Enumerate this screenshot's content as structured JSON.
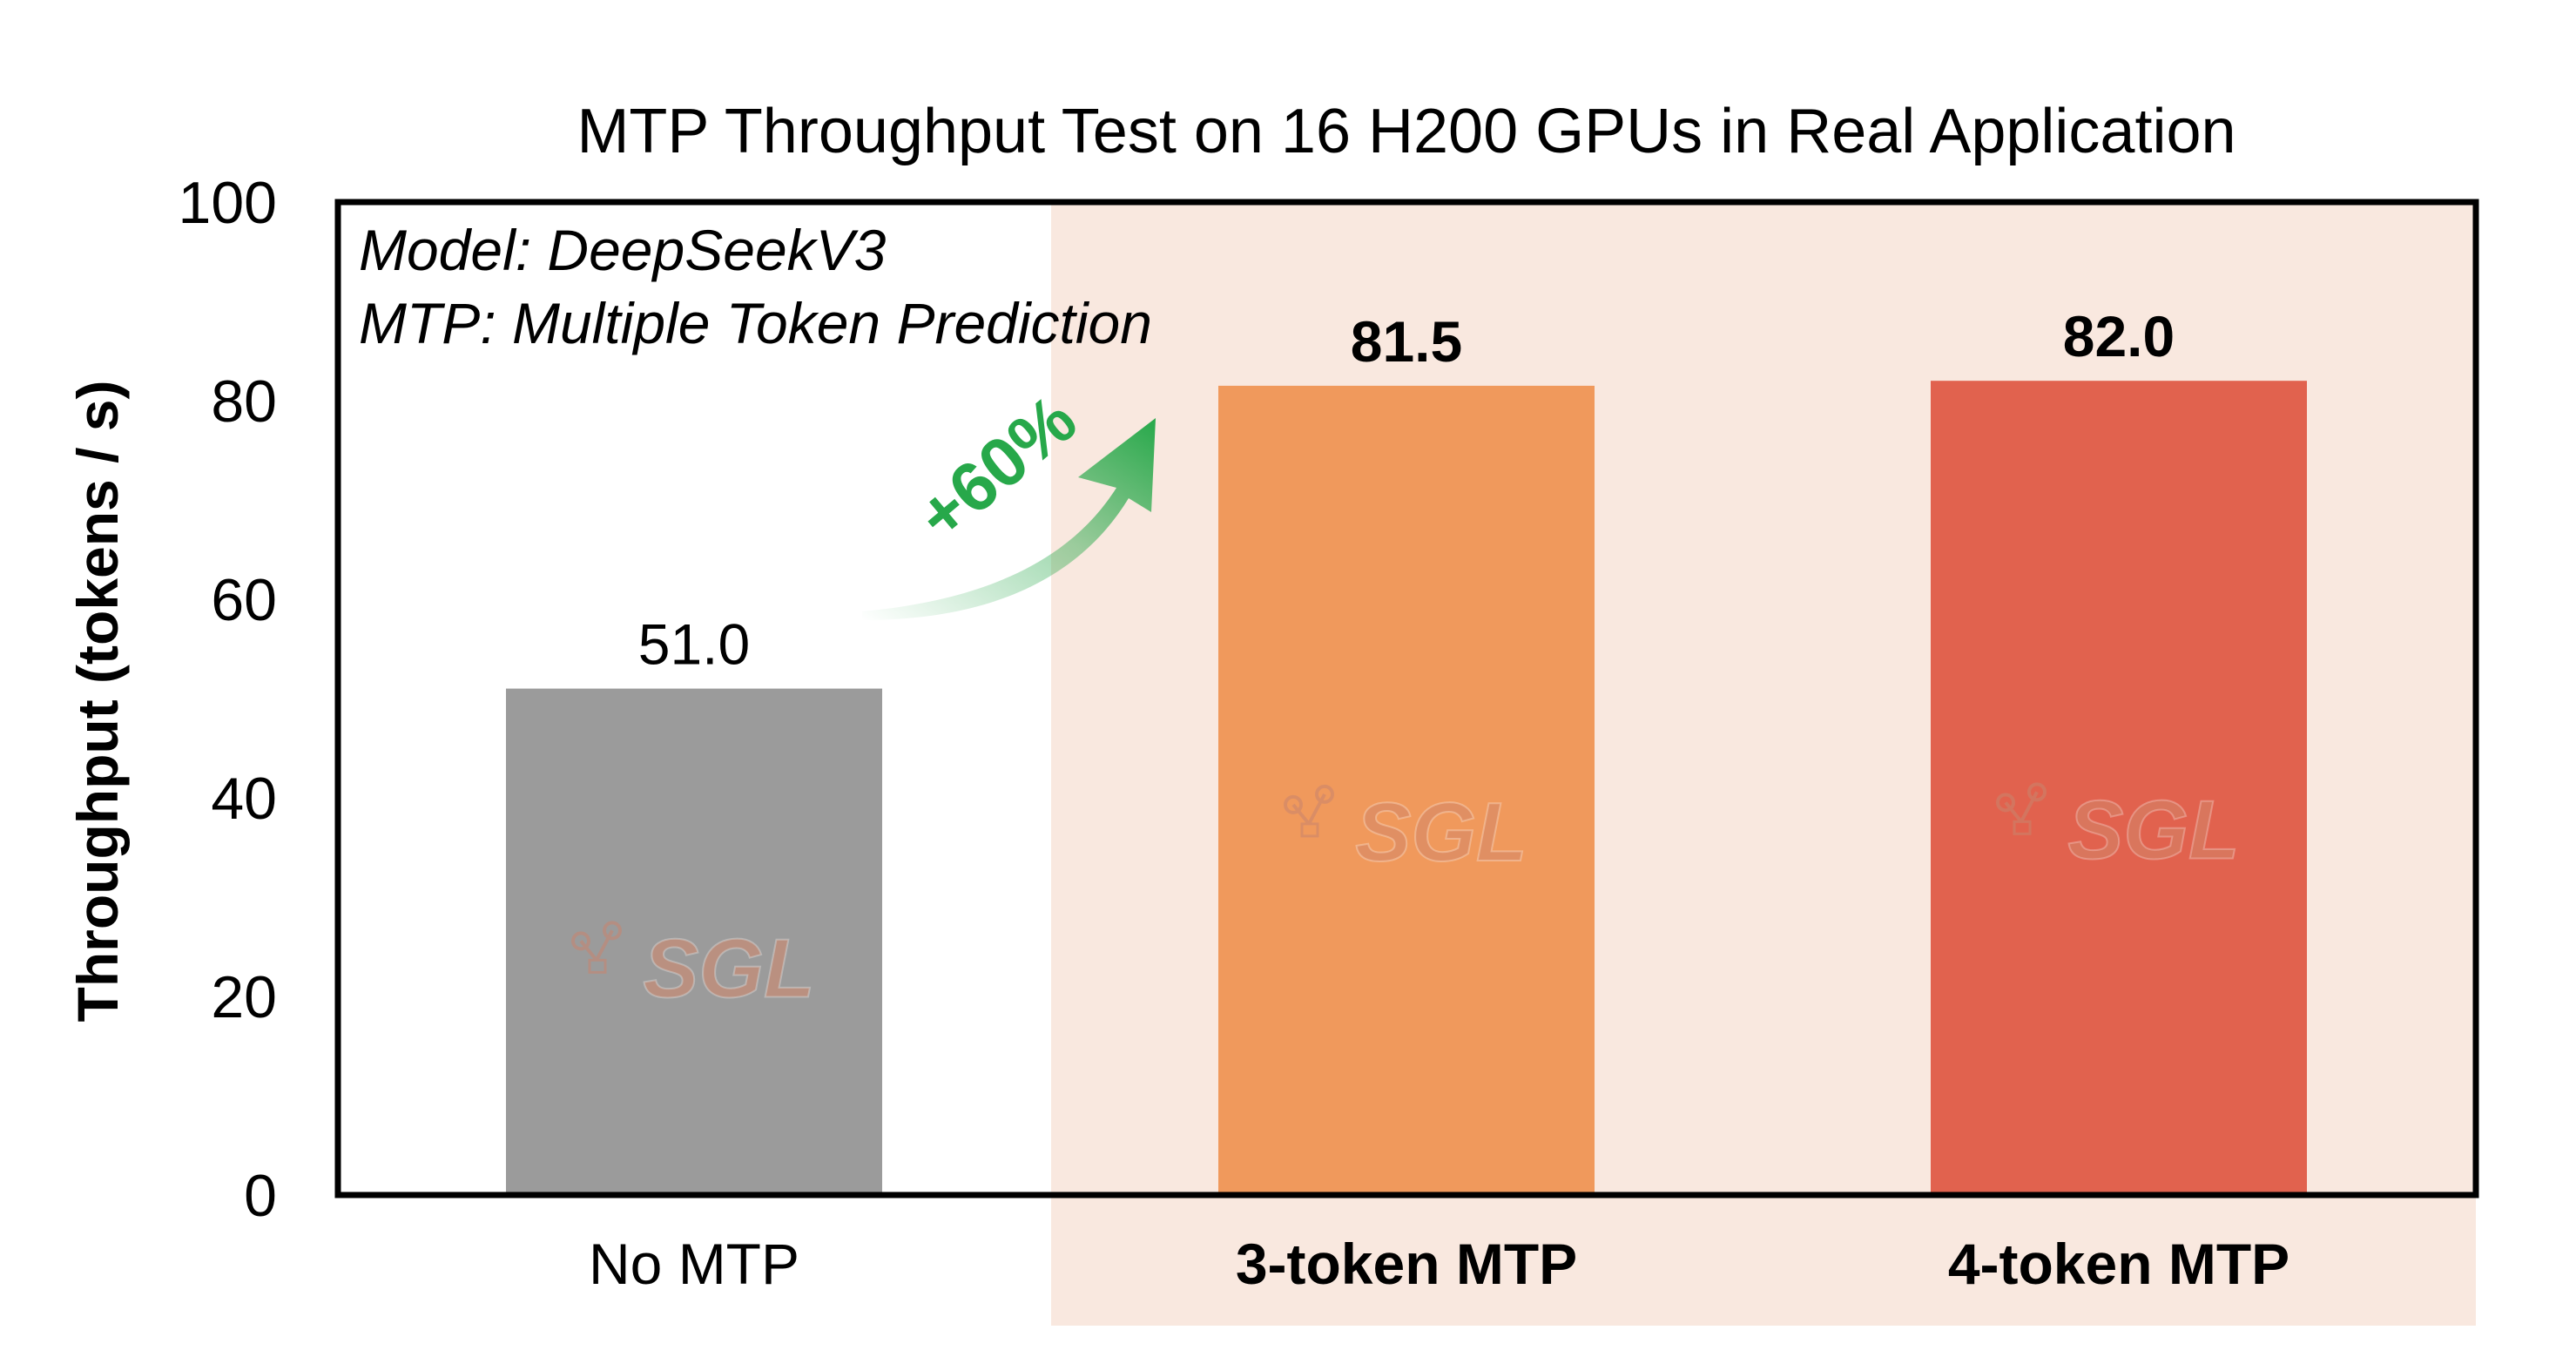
{
  "chart_data": {
    "type": "bar",
    "title": "MTP Throughput Test on 16 H200 GPUs in Real Application",
    "ylabel": "Throughput (tokens / s)",
    "xlabel": "",
    "ylim": [
      0,
      100
    ],
    "yticks": [
      0,
      20,
      40,
      60,
      80,
      100
    ],
    "categories": [
      "No MTP",
      "3-token MTP",
      "4-token MTP"
    ],
    "values": [
      51.0,
      81.5,
      82.0
    ],
    "value_labels": [
      "51.0",
      "81.5",
      "82.0"
    ],
    "bar_colors": [
      "#9b9b9b",
      "#f0995c",
      "#e1624e"
    ],
    "highlight_background": "#f9e8df",
    "annotations": [
      "Model: DeepSeekV3",
      "MTP: Multiple Token Prediction"
    ],
    "gain_label": "+60%",
    "gain_color": "#27a84a",
    "watermark": "SGL",
    "grid": false,
    "legend": "none"
  }
}
